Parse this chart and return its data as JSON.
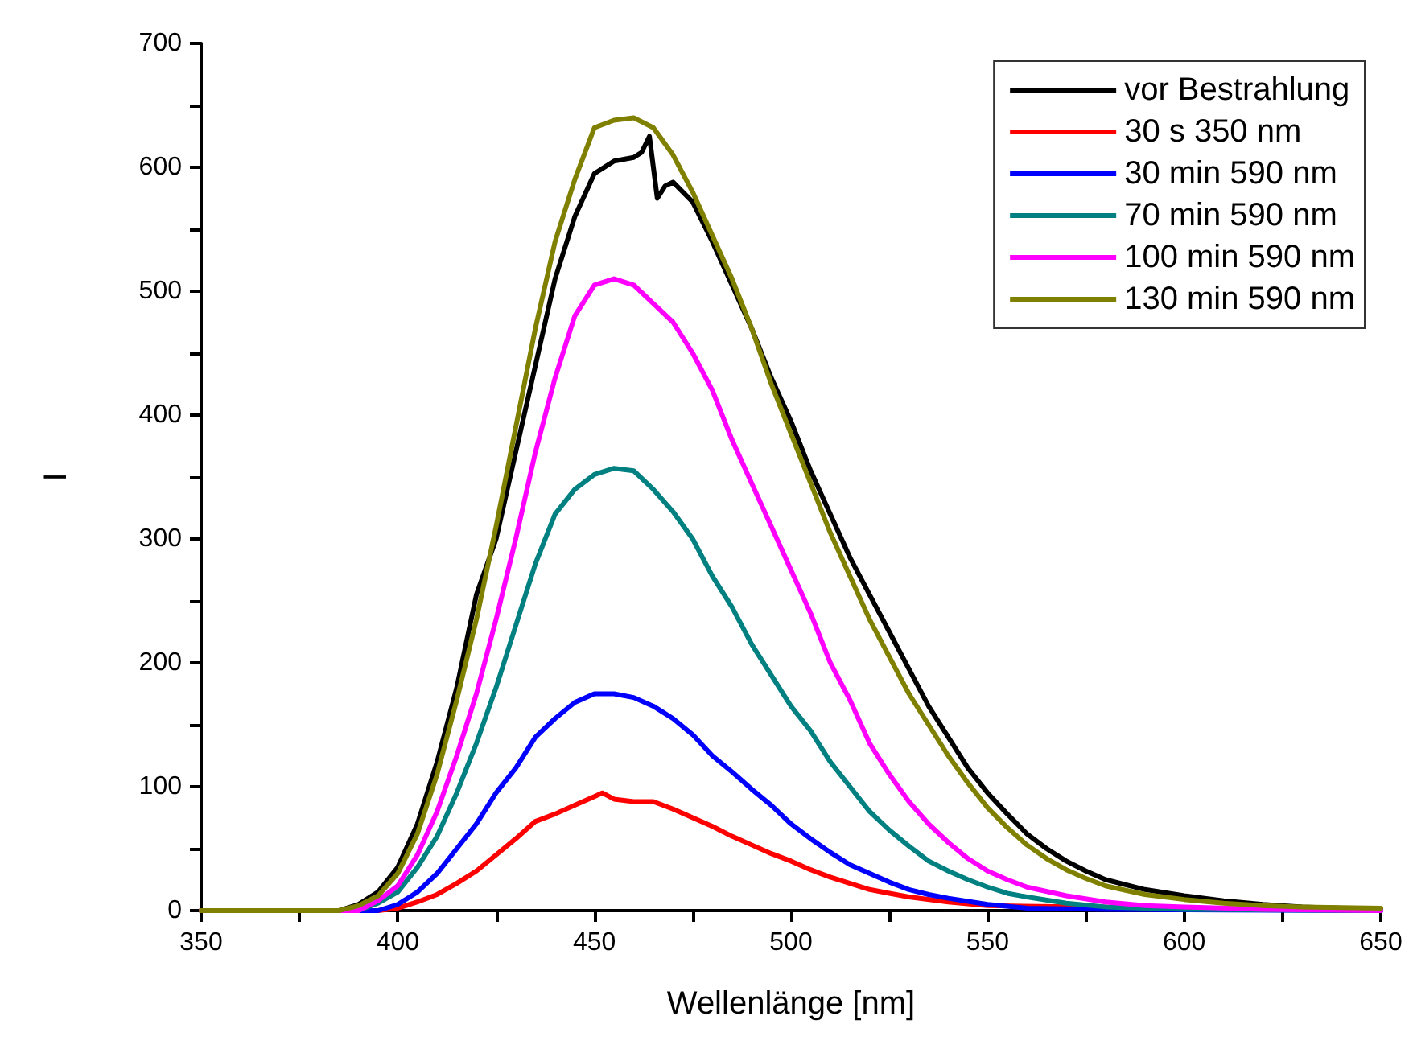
{
  "chart_data": {
    "type": "line",
    "xlabel": "Wellenlänge [nm]",
    "ylabel": "I",
    "xlim": [
      350,
      650
    ],
    "ylim": [
      0,
      700
    ],
    "xticks": [
      350,
      {
        "value": 375,
        "label": null
      },
      400,
      {
        "value": 425,
        "label": null
      },
      450,
      {
        "value": 475,
        "label": null
      },
      500,
      {
        "value": 525,
        "label": null
      },
      550,
      {
        "value": 575,
        "label": null
      },
      600,
      {
        "value": 625,
        "label": null
      },
      650
    ],
    "yticks": [
      0,
      {
        "value": 50,
        "label": null
      },
      100,
      {
        "value": 150,
        "label": null
      },
      200,
      {
        "value": 250,
        "label": null
      },
      300,
      {
        "value": 350,
        "label": null
      },
      400,
      {
        "value": 450,
        "label": null
      },
      500,
      {
        "value": 550,
        "label": null
      },
      600,
      {
        "value": 650,
        "label": null
      },
      700
    ],
    "grid": false,
    "legend": "top right",
    "marker": "none",
    "line_style": "solid",
    "series": [
      {
        "name": "vor Bestrahlung",
        "color": "#000000",
        "x": [
          350,
          385,
          390,
          395,
          400,
          405,
          410,
          415,
          420,
          425,
          430,
          435,
          440,
          445,
          450,
          455,
          460,
          462,
          464,
          466,
          468,
          470,
          475,
          480,
          485,
          490,
          495,
          500,
          505,
          510,
          515,
          520,
          525,
          530,
          535,
          540,
          545,
          550,
          555,
          560,
          565,
          570,
          575,
          580,
          590,
          600,
          610,
          620,
          630,
          650
        ],
        "values": [
          0,
          0,
          5,
          15,
          35,
          70,
          120,
          180,
          255,
          300,
          370,
          440,
          510,
          560,
          595,
          605,
          608,
          612,
          625,
          575,
          585,
          588,
          572,
          540,
          505,
          470,
          430,
          395,
          355,
          320,
          285,
          255,
          225,
          195,
          165,
          140,
          115,
          95,
          78,
          62,
          50,
          40,
          32,
          25,
          17,
          12,
          8,
          5,
          3,
          1
        ]
      },
      {
        "name": "30 s 350 nm",
        "color": "#ff0000",
        "x": [
          350,
          395,
          400,
          405,
          410,
          415,
          420,
          425,
          430,
          435,
          440,
          445,
          450,
          452,
          455,
          460,
          465,
          470,
          475,
          480,
          485,
          490,
          495,
          500,
          505,
          510,
          515,
          520,
          525,
          530,
          540,
          550,
          650
        ],
        "values": [
          0,
          0,
          2,
          7,
          13,
          22,
          32,
          45,
          58,
          72,
          78,
          85,
          92,
          95,
          90,
          88,
          88,
          82,
          75,
          68,
          60,
          53,
          46,
          40,
          33,
          27,
          22,
          17,
          14,
          11,
          7,
          4,
          0
        ]
      },
      {
        "name": "30 min 590 nm",
        "color": "#0000ff",
        "x": [
          350,
          395,
          400,
          405,
          410,
          415,
          420,
          425,
          430,
          435,
          440,
          445,
          450,
          455,
          460,
          465,
          470,
          475,
          480,
          485,
          490,
          495,
          500,
          505,
          510,
          515,
          520,
          525,
          530,
          535,
          540,
          550,
          560,
          580,
          650
        ],
        "values": [
          0,
          0,
          5,
          15,
          30,
          50,
          70,
          95,
          115,
          140,
          155,
          168,
          175,
          175,
          172,
          165,
          155,
          142,
          125,
          112,
          98,
          85,
          70,
          58,
          47,
          37,
          30,
          23,
          17,
          13,
          10,
          5,
          2,
          1,
          0
        ]
      },
      {
        "name": "70 min 590 nm",
        "color": "#008080",
        "x": [
          350,
          390,
          395,
          400,
          405,
          410,
          415,
          420,
          425,
          430,
          435,
          440,
          445,
          450,
          455,
          460,
          465,
          470,
          475,
          480,
          485,
          490,
          495,
          500,
          505,
          510,
          515,
          520,
          525,
          530,
          535,
          540,
          545,
          550,
          555,
          560,
          570,
          580,
          600,
          650
        ],
        "values": [
          0,
          0,
          6,
          15,
          35,
          60,
          95,
          135,
          180,
          230,
          280,
          320,
          340,
          352,
          357,
          355,
          340,
          322,
          300,
          270,
          245,
          215,
          190,
          165,
          145,
          120,
          100,
          80,
          65,
          52,
          40,
          32,
          25,
          19,
          14,
          11,
          6,
          3,
          1,
          0
        ]
      },
      {
        "name": "100 min 590 nm",
        "color": "#ff00ff",
        "x": [
          350,
          390,
          395,
          400,
          405,
          410,
          415,
          420,
          425,
          430,
          435,
          440,
          445,
          450,
          455,
          460,
          465,
          470,
          475,
          480,
          485,
          490,
          495,
          500,
          505,
          510,
          515,
          520,
          525,
          530,
          535,
          540,
          545,
          550,
          555,
          560,
          570,
          580,
          590,
          600,
          620,
          650
        ],
        "values": [
          0,
          0,
          8,
          20,
          45,
          80,
          125,
          175,
          235,
          300,
          370,
          430,
          480,
          505,
          510,
          505,
          490,
          475,
          450,
          420,
          380,
          345,
          310,
          275,
          240,
          200,
          170,
          135,
          110,
          88,
          70,
          55,
          42,
          32,
          25,
          19,
          12,
          7,
          4,
          3,
          1,
          0
        ]
      },
      {
        "name": "130 min 590 nm",
        "color": "#808000",
        "x": [
          350,
          385,
          390,
          395,
          400,
          405,
          410,
          415,
          420,
          425,
          430,
          435,
          440,
          445,
          450,
          455,
          460,
          465,
          470,
          475,
          480,
          485,
          490,
          495,
          500,
          505,
          510,
          515,
          520,
          525,
          530,
          535,
          540,
          545,
          550,
          555,
          560,
          565,
          570,
          575,
          580,
          590,
          600,
          610,
          620,
          630,
          650
        ],
        "values": [
          0,
          0,
          4,
          12,
          30,
          62,
          110,
          170,
          235,
          310,
          390,
          470,
          540,
          590,
          632,
          638,
          640,
          632,
          610,
          580,
          545,
          510,
          470,
          425,
          385,
          345,
          305,
          270,
          235,
          205,
          175,
          150,
          125,
          103,
          83,
          67,
          53,
          42,
          33,
          26,
          20,
          13,
          9,
          6,
          4,
          3,
          2
        ]
      }
    ]
  }
}
